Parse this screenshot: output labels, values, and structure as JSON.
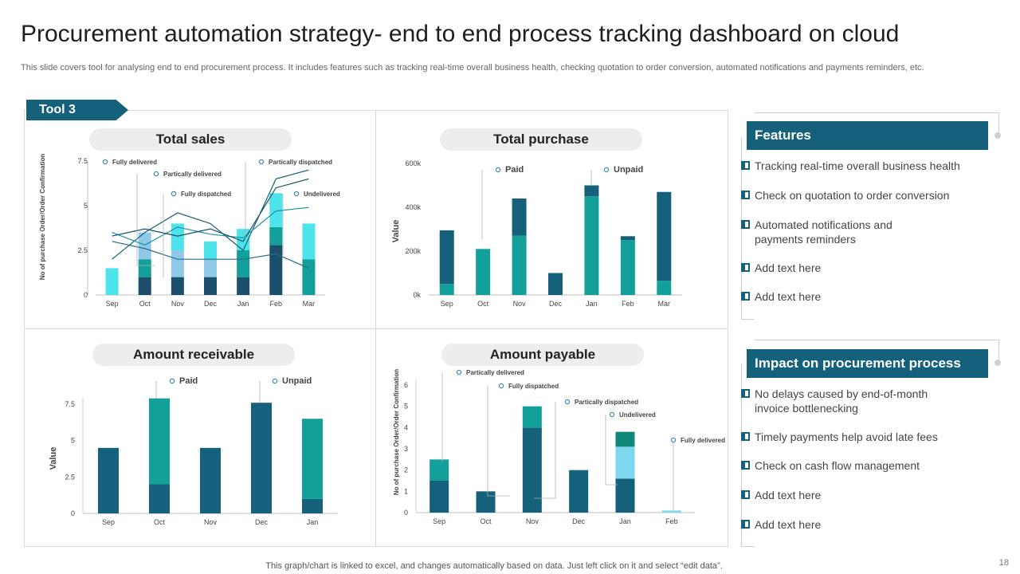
{
  "title": "Procurement automation strategy- end to end process tracking dashboard on cloud",
  "subtitle": "This slide covers tool for analysing end to end procurement process. It includes features such as tracking real-time overall business health, checking quotation to order conversion, automated notifications and payments reminders, etc.",
  "tool_label": "Tool 3",
  "features": {
    "heading": "Features",
    "items": [
      "Tracking real-time overall business health",
      "Check on quotation to order conversion",
      "Automated notifications and payments reminders",
      "Add text here",
      "Add text here"
    ]
  },
  "impact": {
    "heading": "Impact on procurement process",
    "items": [
      "No delays caused by end-of-month invoice bottlenecking",
      "Timely payments help avoid late fees",
      "Check on cash flow management",
      "Add text here",
      "Add text here"
    ]
  },
  "footer": "This graph/chart is linked to excel, and changes automatically based on data. Just left click on it and select “edit data”.",
  "page_number": "18",
  "colors": {
    "dark": "#15607a",
    "teal": "#13a09a",
    "navy": "#1c4f6c",
    "cyan": "#4de3ea",
    "lightblue": "#7fd7ef",
    "green": "#11877a",
    "header": "#15607a"
  },
  "chart_data": [
    {
      "id": "total_sales",
      "type": "bar",
      "stacked": true,
      "title": "Total sales",
      "ylabel": "No of purchase Order/Order Confirmation",
      "xlabel": "",
      "categories": [
        "Sep",
        "Oct",
        "Nov",
        "Dec",
        "Jan",
        "Feb",
        "Mar"
      ],
      "ylim": [
        0,
        7.5
      ],
      "yticks": [
        "0",
        "2.5",
        "5",
        "7.5"
      ],
      "series": [
        {
          "name": "Fully delivered",
          "values": [
            0,
            1,
            1,
            1,
            1,
            2.8,
            0
          ]
        },
        {
          "name": "Fully dispatched",
          "values": [
            0,
            1,
            0,
            0,
            1.5,
            1,
            2
          ]
        },
        {
          "name": "Partically delivered",
          "values": [
            0,
            1.5,
            1.5,
            1,
            0,
            0,
            0
          ]
        },
        {
          "name": "Partically dispatched",
          "values": [
            0,
            0,
            1.5,
            1,
            1.2,
            1.9,
            2
          ]
        },
        {
          "name": "Undelivered",
          "values": [
            1.5,
            0,
            0,
            0,
            0,
            0,
            0
          ]
        }
      ],
      "lines": [
        {
          "name": "Trend 1",
          "values": [
            2,
            3.5,
            4.6,
            4,
            2.5,
            6.5,
            7
          ]
        },
        {
          "name": "Trend 2",
          "values": [
            3.5,
            2.8,
            3.8,
            3.4,
            3.2,
            4.7,
            4.9
          ]
        },
        {
          "name": "Trend 3",
          "values": [
            3,
            2.6,
            2,
            2,
            2,
            2.3,
            1.5
          ]
        },
        {
          "name": "Trend 4",
          "values": [
            3.3,
            3.7,
            3.3,
            3.7,
            3,
            6,
            6.5
          ]
        }
      ]
    },
    {
      "id": "total_purchase",
      "type": "bar",
      "stacked": true,
      "title": "Total purchase",
      "ylabel": "Value",
      "xlabel": "",
      "categories": [
        "Sep",
        "Oct",
        "Nov",
        "Dec",
        "Jan",
        "Feb",
        "Mar"
      ],
      "ylim": [
        0,
        600000
      ],
      "yticks": [
        "0k",
        "200k",
        "400k",
        "600k"
      ],
      "series": [
        {
          "name": "Paid",
          "values": [
            50000,
            210000,
            270000,
            0,
            450000,
            250000,
            65000
          ]
        },
        {
          "name": "Unpaid",
          "values": [
            245000,
            0,
            170000,
            100000,
            50000,
            18000,
            405000
          ]
        }
      ]
    },
    {
      "id": "amount_receivable",
      "type": "bar",
      "stacked": true,
      "title": "Amount receivable",
      "ylabel": "Value",
      "xlabel": "",
      "categories": [
        "Sep",
        "Oct",
        "Nov",
        "Dec",
        "Jan"
      ],
      "ylim": [
        0,
        7.5
      ],
      "yticks": [
        "0",
        "2.5",
        "5",
        "7.5"
      ],
      "series": [
        {
          "name": "Unpaid",
          "values": [
            4.5,
            2,
            4.5,
            7.6,
            1
          ]
        },
        {
          "name": "Paid",
          "values": [
            0,
            5.9,
            0,
            0,
            5.5
          ]
        }
      ]
    },
    {
      "id": "amount_payable",
      "type": "bar",
      "stacked": true,
      "title": "Amount payable",
      "ylabel": "No of purchase Order/Order Confirmation",
      "xlabel": "",
      "categories": [
        "Sep",
        "Oct",
        "Nov",
        "Dec",
        "Jan",
        "Feb"
      ],
      "ylim": [
        0,
        6
      ],
      "yticks": [
        "0",
        "1",
        "2",
        "3",
        "4",
        "5",
        "6"
      ],
      "series": [
        {
          "name": "Partically delivered",
          "values": [
            1.5,
            1,
            4,
            2,
            1.6,
            0
          ]
        },
        {
          "name": "Fully dispatched",
          "values": [
            1,
            0,
            1,
            0,
            0,
            0
          ]
        },
        {
          "name": "Partically dispatched",
          "values": [
            0,
            0,
            0,
            0,
            1.5,
            0
          ]
        },
        {
          "name": "Undelivered",
          "values": [
            0,
            0,
            0,
            0,
            0.7,
            0
          ]
        },
        {
          "name": "Fully delivered",
          "values": [
            0,
            0,
            0,
            0,
            0,
            0.1
          ]
        }
      ]
    }
  ]
}
